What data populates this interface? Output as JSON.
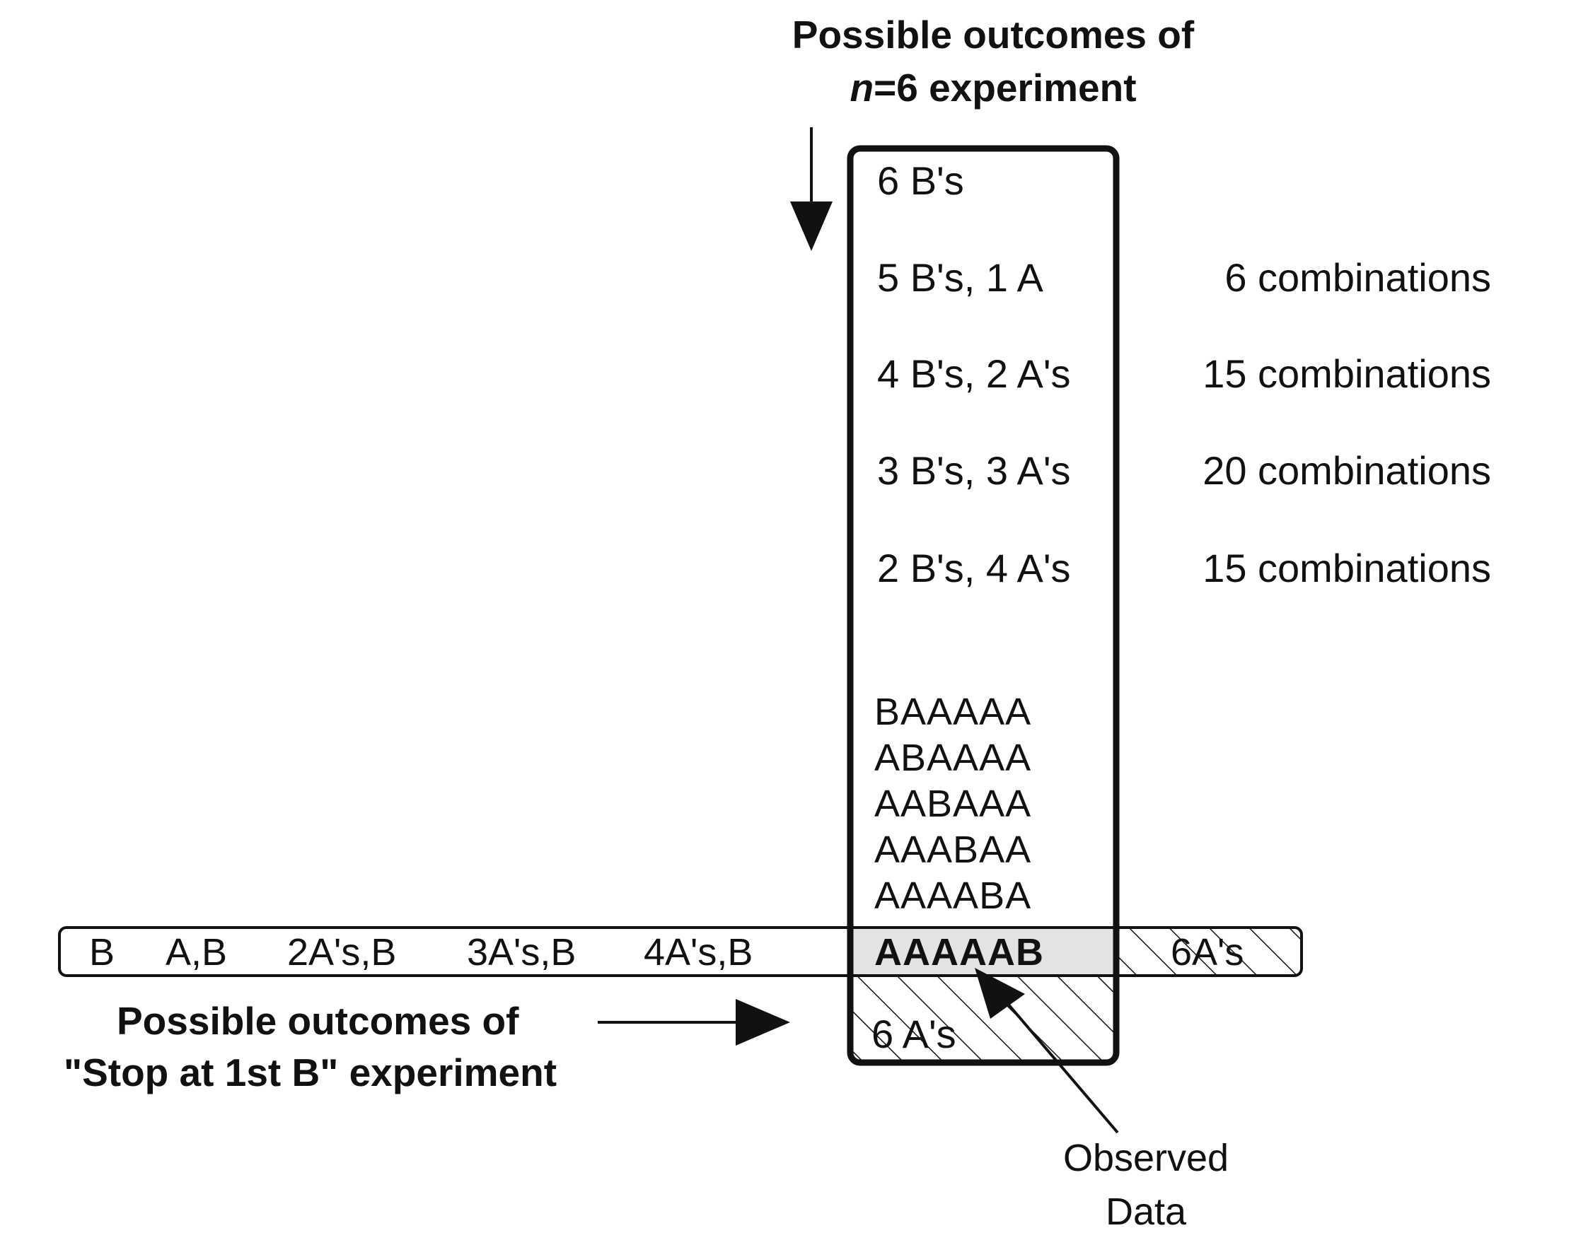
{
  "top_label": {
    "line1": "Possible outcomes of",
    "n_symbol": "n",
    "line2_rest": "=6 experiment"
  },
  "box_rows": [
    {
      "outcome": "6 B's",
      "combinations": ""
    },
    {
      "outcome": "5 B's, 1 A",
      "combinations": "6 combinations"
    },
    {
      "outcome": "4 B's, 2 A's",
      "combinations": "15 combinations"
    },
    {
      "outcome": "3 B's, 3 A's",
      "combinations": "20 combinations"
    },
    {
      "outcome": "2 B's, 4 A's",
      "combinations": "15 combinations"
    }
  ],
  "sequences": [
    "BAAAAA",
    "ABAAAA",
    "AABAAA",
    "AAABAA",
    "AAAABA"
  ],
  "bar_items": [
    "B",
    "A,B",
    "2A's,B",
    "3A's,B",
    "4A's,B"
  ],
  "observed_sequence": "AAAAAB",
  "bar_right": "6A's",
  "box_bottom": "6 A's",
  "bottom_label": {
    "line1": "Possible outcomes of",
    "line2": "\"Stop at 1st B\" experiment"
  },
  "observed_label": {
    "line1": "Observed",
    "line2": "Data"
  }
}
